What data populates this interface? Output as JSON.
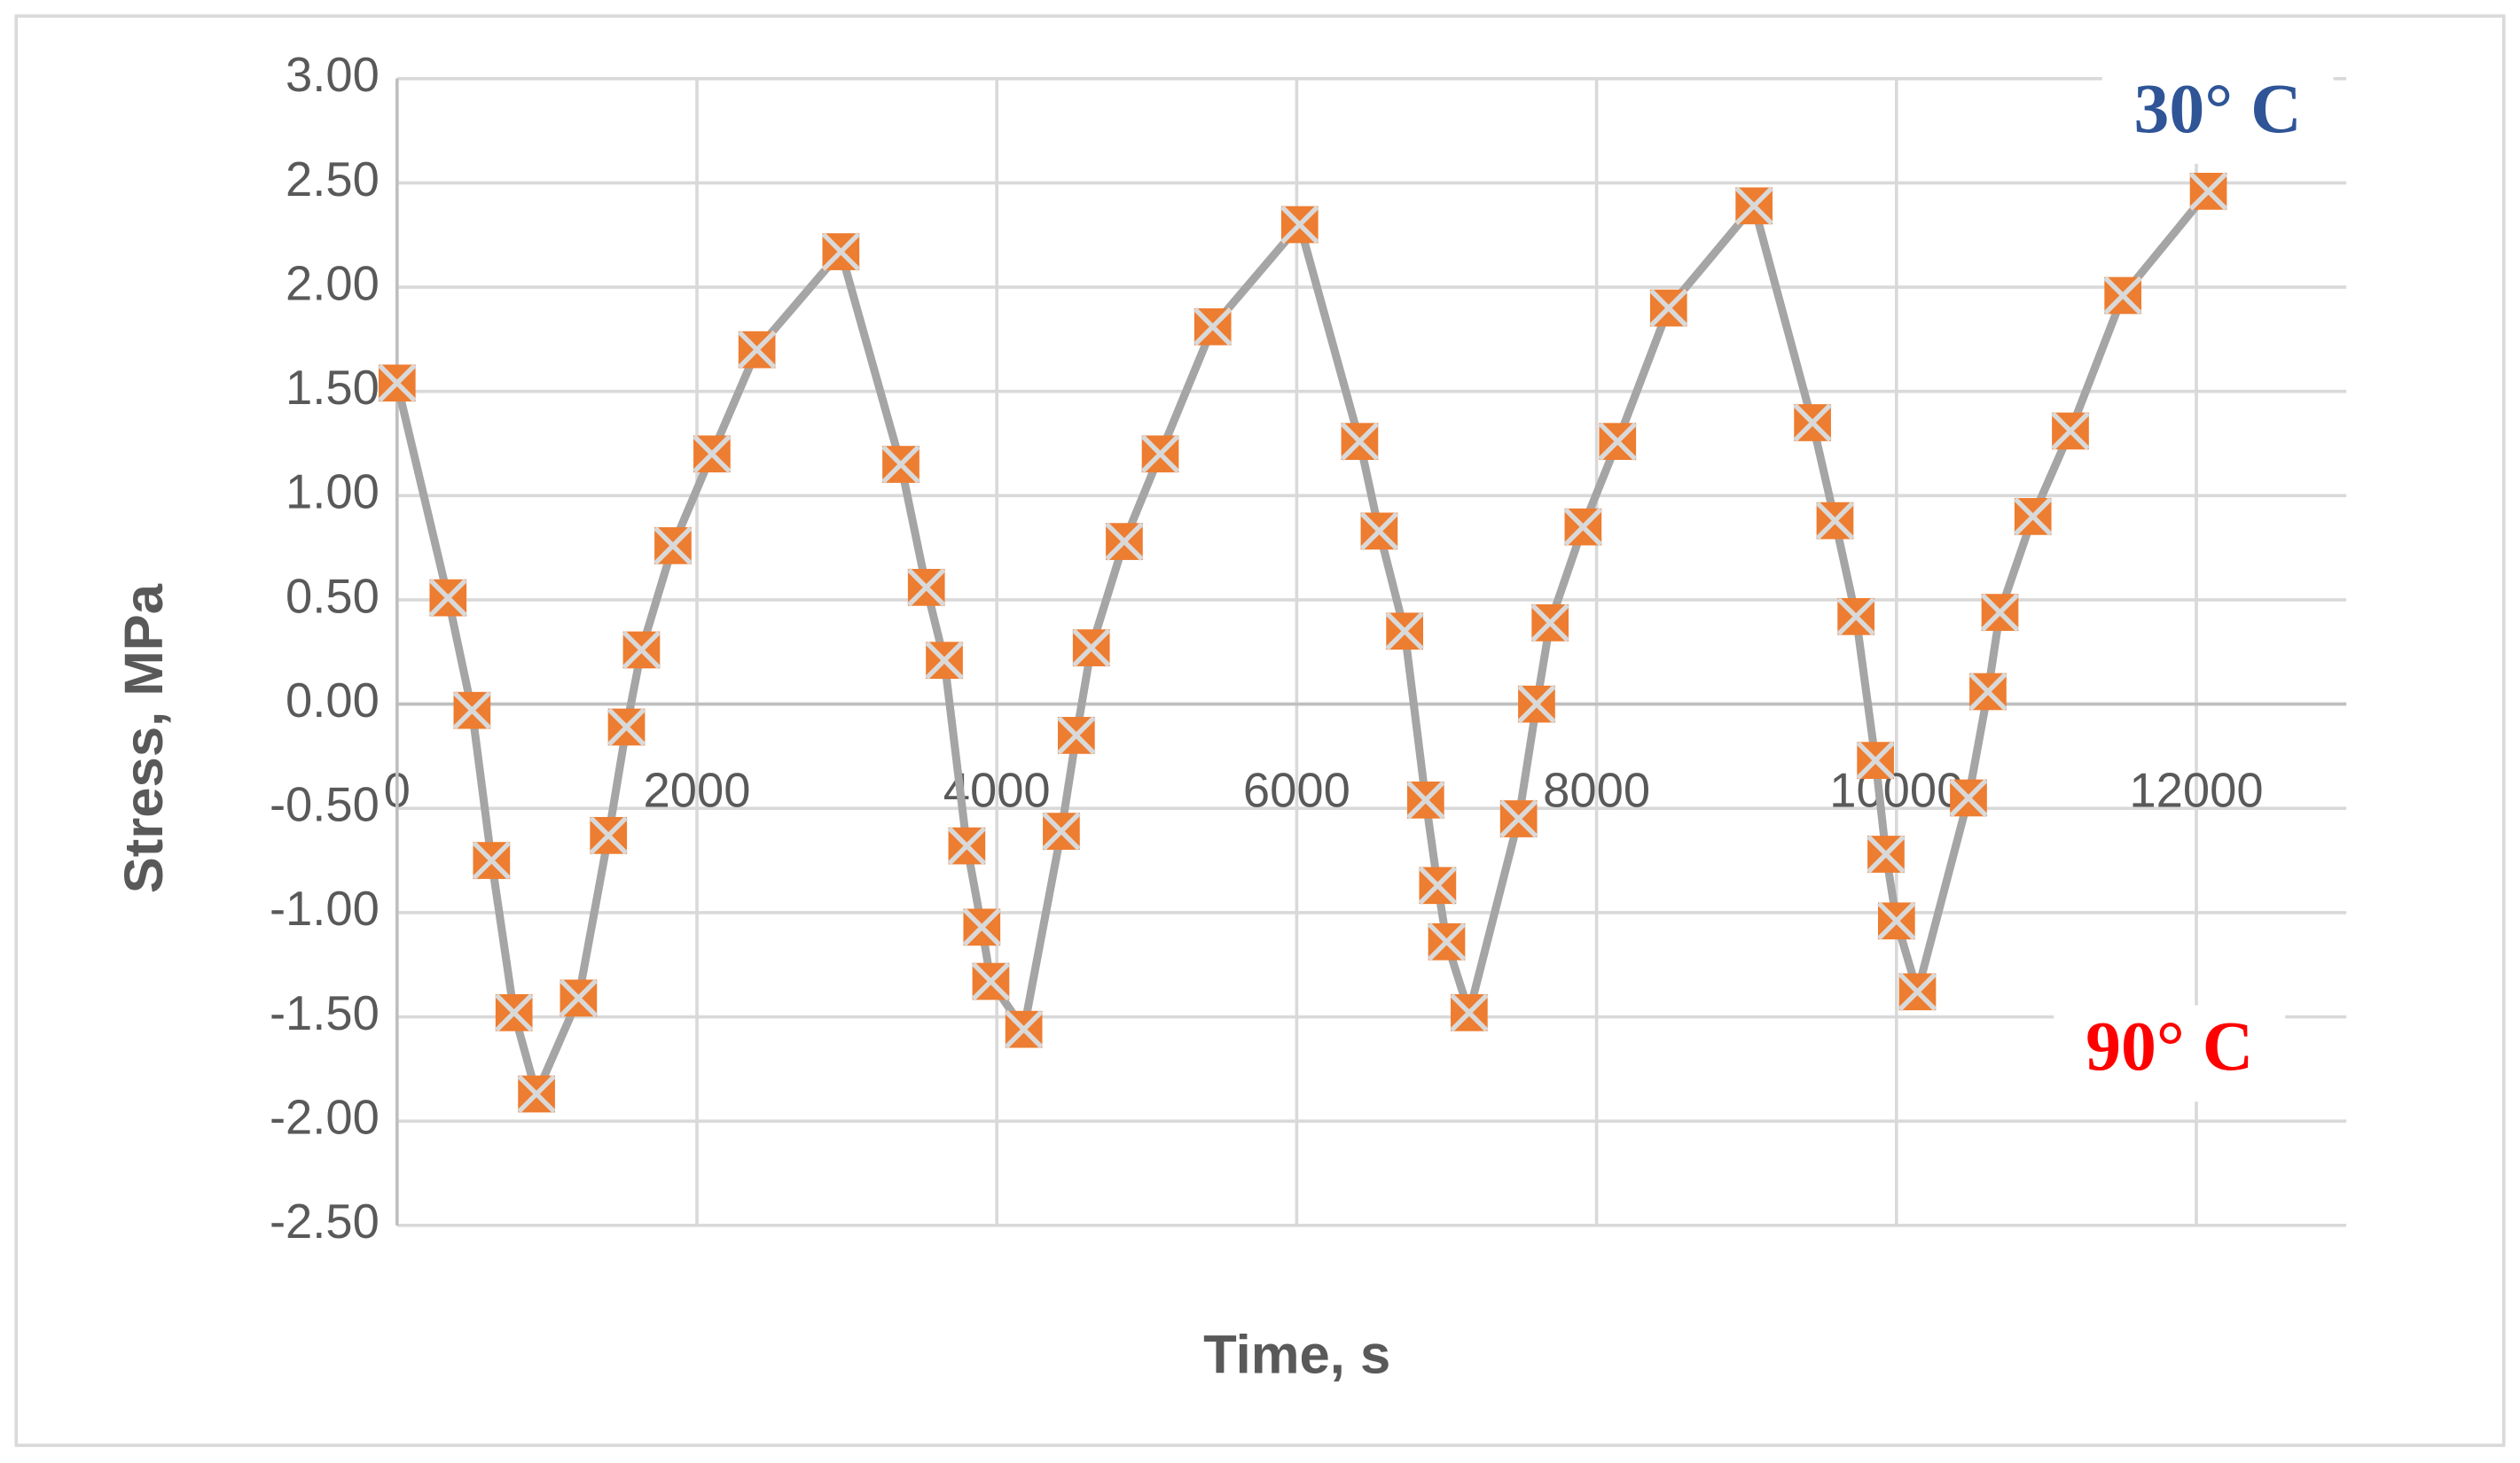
{
  "chart_data": {
    "type": "line",
    "x_label": "Time, s",
    "y_label": "Stress, MPa",
    "x": [
      0,
      340,
      500,
      630,
      780,
      930,
      1210,
      1410,
      1530,
      1630,
      1840,
      2100,
      2400,
      2960,
      3360,
      3530,
      3650,
      3800,
      3900,
      3960,
      4180,
      4430,
      4530,
      4630,
      4850,
      5090,
      5440,
      6020,
      6420,
      6550,
      6720,
      6860,
      6940,
      7000,
      7150,
      7480,
      7600,
      7690,
      7910,
      8140,
      8480,
      9050,
      9440,
      9590,
      9730,
      9860,
      9930,
      10000,
      10140,
      10480,
      10610,
      10690,
      10910,
      11160,
      11510,
      12080
    ],
    "series": [
      {
        "color": "#a5a5a5",
        "marker_color": "#ed7d31",
        "values": [
          1.54,
          0.51,
          -0.03,
          -0.75,
          -1.48,
          -1.87,
          -1.41,
          -0.63,
          -0.11,
          0.26,
          0.76,
          1.2,
          1.7,
          2.17,
          1.15,
          0.56,
          0.21,
          -0.68,
          -1.07,
          -1.33,
          -1.56,
          -0.61,
          -0.15,
          0.27,
          0.78,
          1.2,
          1.81,
          2.3,
          1.26,
          0.83,
          0.35,
          -0.46,
          -0.87,
          -1.14,
          -1.48,
          -0.55,
          0.0,
          0.39,
          0.85,
          1.26,
          1.9,
          2.39,
          1.35,
          0.88,
          0.42,
          -0.27,
          -0.72,
          -1.04,
          -1.38,
          -0.45,
          0.06,
          0.44,
          0.9,
          1.31,
          1.96,
          2.46
        ]
      }
    ],
    "xlim": [
      0,
      13000
    ],
    "xticks": [
      0,
      2000,
      4000,
      6000,
      8000,
      10000,
      12000
    ],
    "ylim": [
      -2.5,
      3
    ],
    "yticks": [
      {
        "value": 3,
        "label": "3.00"
      },
      {
        "value": 2.5,
        "label": "2.50"
      },
      {
        "value": 2,
        "label": "2.00"
      },
      {
        "value": 1.5,
        "label": "1.50"
      },
      {
        "value": 1,
        "label": "1.00"
      },
      {
        "value": 0.5,
        "label": "0.50"
      },
      {
        "value": 0,
        "label": "0.00"
      },
      {
        "value": -0.5,
        "label": "-0.50"
      },
      {
        "value": -1,
        "label": "-1.00"
      },
      {
        "value": -1.5,
        "label": "-1.50"
      },
      {
        "value": -2,
        "label": "-2.00"
      },
      {
        "value": -2.5,
        "label": "-2.50"
      }
    ],
    "grid": true,
    "annotations": [
      {
        "text": "30° C",
        "color": "#2f5597"
      },
      {
        "text": "90° C",
        "color": "#ff0000"
      }
    ]
  }
}
